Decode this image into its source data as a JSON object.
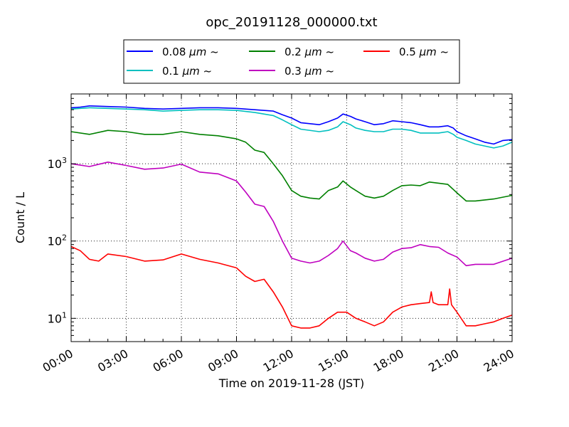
{
  "chart_data": {
    "type": "line",
    "title": "opc_20191128_000000.txt",
    "xlabel": "Time on 2019-11-28 (JST)",
    "ylabel": "Count / L",
    "yscale": "log",
    "xlim": [
      0,
      24
    ],
    "ylim": [
      5,
      8000
    ],
    "x_ticks": [
      0,
      3,
      6,
      9,
      12,
      15,
      18,
      21,
      24
    ],
    "x_tick_labels": [
      "00:00",
      "03:00",
      "06:00",
      "09:00",
      "12:00",
      "15:00",
      "18:00",
      "21:00",
      "24:00"
    ],
    "y_ticks": [
      10,
      100,
      1000
    ],
    "y_tick_labels": [
      {
        "base": "10",
        "exp": "1"
      },
      {
        "base": "10",
        "exp": "2"
      },
      {
        "base": "10",
        "exp": "3"
      }
    ],
    "grid": true,
    "legend_position": "top-center",
    "series": [
      {
        "name": "0.08 μm ~",
        "prefix": "0.08 ",
        "unit": "μm",
        "suffix": " ~",
        "color": "#0000ff",
        "points": [
          [
            0,
            5300
          ],
          [
            0.5,
            5400
          ],
          [
            1,
            5600
          ],
          [
            2,
            5500
          ],
          [
            3,
            5400
          ],
          [
            4,
            5200
          ],
          [
            5,
            5100
          ],
          [
            6,
            5200
          ],
          [
            7,
            5300
          ],
          [
            8,
            5300
          ],
          [
            9,
            5200
          ],
          [
            10,
            5000
          ],
          [
            11,
            4800
          ],
          [
            11.5,
            4300
          ],
          [
            12,
            3900
          ],
          [
            12.5,
            3400
          ],
          [
            13.5,
            3200
          ],
          [
            14,
            3500
          ],
          [
            14.5,
            3900
          ],
          [
            14.8,
            4400
          ],
          [
            15.2,
            4100
          ],
          [
            15.5,
            3800
          ],
          [
            16,
            3500
          ],
          [
            16.5,
            3200
          ],
          [
            17,
            3300
          ],
          [
            17.5,
            3600
          ],
          [
            18,
            3500
          ],
          [
            18.5,
            3400
          ],
          [
            19,
            3200
          ],
          [
            19.5,
            3000
          ],
          [
            20,
            3000
          ],
          [
            20.5,
            3100
          ],
          [
            20.8,
            2900
          ],
          [
            21,
            2600
          ],
          [
            21.5,
            2300
          ],
          [
            22,
            2100
          ],
          [
            22.5,
            1900
          ],
          [
            23,
            1800
          ],
          [
            23.5,
            2000
          ],
          [
            24,
            2050
          ]
        ]
      },
      {
        "name": "0.1 μm ~",
        "prefix": "0.1 ",
        "unit": "μm",
        "suffix": " ~",
        "color": "#00bfbf",
        "points": [
          [
            0,
            5100
          ],
          [
            0.5,
            5200
          ],
          [
            1,
            5300
          ],
          [
            2,
            5200
          ],
          [
            3,
            5100
          ],
          [
            4,
            5000
          ],
          [
            5,
            4800
          ],
          [
            6,
            4900
          ],
          [
            7,
            5000
          ],
          [
            8,
            5000
          ],
          [
            9,
            4900
          ],
          [
            10,
            4600
          ],
          [
            11,
            4200
          ],
          [
            11.5,
            3700
          ],
          [
            12,
            3200
          ],
          [
            12.5,
            2800
          ],
          [
            13.5,
            2600
          ],
          [
            14,
            2700
          ],
          [
            14.5,
            3000
          ],
          [
            14.8,
            3500
          ],
          [
            15.2,
            3200
          ],
          [
            15.5,
            2900
          ],
          [
            16,
            2700
          ],
          [
            16.5,
            2600
          ],
          [
            17,
            2600
          ],
          [
            17.5,
            2800
          ],
          [
            18,
            2800
          ],
          [
            18.5,
            2700
          ],
          [
            19,
            2500
          ],
          [
            19.5,
            2500
          ],
          [
            20,
            2500
          ],
          [
            20.5,
            2600
          ],
          [
            20.8,
            2400
          ],
          [
            21,
            2200
          ],
          [
            21.5,
            2000
          ],
          [
            22,
            1800
          ],
          [
            22.5,
            1700
          ],
          [
            23,
            1600
          ],
          [
            23.5,
            1700
          ],
          [
            24,
            1900
          ]
        ]
      },
      {
        "name": "0.2 μm ~",
        "prefix": "0.2 ",
        "unit": "μm",
        "suffix": " ~",
        "color": "#008000",
        "points": [
          [
            0,
            2600
          ],
          [
            1,
            2400
          ],
          [
            2,
            2700
          ],
          [
            3,
            2600
          ],
          [
            4,
            2400
          ],
          [
            5,
            2400
          ],
          [
            6,
            2600
          ],
          [
            7,
            2400
          ],
          [
            8,
            2300
          ],
          [
            9,
            2100
          ],
          [
            9.5,
            1900
          ],
          [
            10,
            1500
          ],
          [
            10.5,
            1400
          ],
          [
            11,
            1000
          ],
          [
            11.5,
            700
          ],
          [
            12,
            450
          ],
          [
            12.5,
            380
          ],
          [
            13,
            360
          ],
          [
            13.5,
            350
          ],
          [
            14,
            450
          ],
          [
            14.5,
            500
          ],
          [
            14.8,
            600
          ],
          [
            15.2,
            500
          ],
          [
            15.5,
            450
          ],
          [
            16,
            380
          ],
          [
            16.5,
            360
          ],
          [
            17,
            380
          ],
          [
            17.5,
            450
          ],
          [
            18,
            520
          ],
          [
            18.5,
            530
          ],
          [
            19,
            520
          ],
          [
            19.5,
            580
          ],
          [
            20,
            560
          ],
          [
            20.5,
            540
          ],
          [
            21,
            420
          ],
          [
            21.5,
            330
          ],
          [
            22,
            330
          ],
          [
            23,
            350
          ],
          [
            24,
            390
          ]
        ]
      },
      {
        "name": "0.3 μm ~",
        "prefix": "0.3 ",
        "unit": "μm",
        "suffix": " ~",
        "color": "#bf00bf",
        "points": [
          [
            0,
            1000
          ],
          [
            1,
            920
          ],
          [
            2,
            1050
          ],
          [
            3,
            950
          ],
          [
            4,
            850
          ],
          [
            5,
            880
          ],
          [
            6,
            990
          ],
          [
            7,
            780
          ],
          [
            8,
            740
          ],
          [
            9,
            600
          ],
          [
            9.5,
            430
          ],
          [
            10,
            300
          ],
          [
            10.5,
            280
          ],
          [
            11,
            180
          ],
          [
            11.5,
            100
          ],
          [
            12,
            60
          ],
          [
            12.5,
            55
          ],
          [
            13,
            52
          ],
          [
            13.5,
            55
          ],
          [
            14,
            65
          ],
          [
            14.5,
            80
          ],
          [
            14.8,
            100
          ],
          [
            15.2,
            75
          ],
          [
            15.5,
            70
          ],
          [
            16,
            60
          ],
          [
            16.5,
            55
          ],
          [
            17,
            58
          ],
          [
            17.5,
            72
          ],
          [
            18,
            80
          ],
          [
            18.5,
            82
          ],
          [
            19,
            90
          ],
          [
            19.5,
            85
          ],
          [
            20,
            83
          ],
          [
            20.5,
            70
          ],
          [
            21,
            62
          ],
          [
            21.5,
            48
          ],
          [
            22,
            50
          ],
          [
            23,
            50
          ],
          [
            24,
            60
          ]
        ]
      },
      {
        "name": "0.5 μm ~",
        "prefix": "0.5 ",
        "unit": "μm",
        "suffix": " ~",
        "color": "#ff0000",
        "points": [
          [
            0,
            85
          ],
          [
            0.5,
            75
          ],
          [
            1,
            58
          ],
          [
            1.5,
            55
          ],
          [
            2,
            68
          ],
          [
            3,
            63
          ],
          [
            4,
            55
          ],
          [
            5,
            57
          ],
          [
            6,
            68
          ],
          [
            7,
            58
          ],
          [
            8,
            52
          ],
          [
            9,
            45
          ],
          [
            9.5,
            35
          ],
          [
            10,
            30
          ],
          [
            10.5,
            32
          ],
          [
            11,
            22
          ],
          [
            11.5,
            14
          ],
          [
            12,
            8
          ],
          [
            12.5,
            7.5
          ],
          [
            13,
            7.5
          ],
          [
            13.5,
            8
          ],
          [
            14,
            10
          ],
          [
            14.5,
            12
          ],
          [
            15,
            12
          ],
          [
            15.5,
            10
          ],
          [
            16,
            9
          ],
          [
            16.5,
            8
          ],
          [
            17,
            9
          ],
          [
            17.5,
            12
          ],
          [
            18,
            14
          ],
          [
            18.5,
            15
          ],
          [
            19,
            15.5
          ],
          [
            19.5,
            16
          ],
          [
            19.6,
            22
          ],
          [
            19.7,
            16
          ],
          [
            20,
            15
          ],
          [
            20.5,
            15
          ],
          [
            20.6,
            24
          ],
          [
            20.7,
            15
          ],
          [
            21,
            12
          ],
          [
            21.5,
            8
          ],
          [
            22,
            8
          ],
          [
            22.5,
            8.5
          ],
          [
            23,
            9
          ],
          [
            23.5,
            10
          ],
          [
            24,
            11
          ]
        ]
      }
    ]
  }
}
